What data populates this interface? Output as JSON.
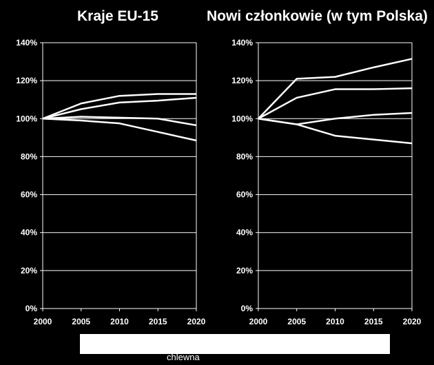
{
  "chart_data": [
    {
      "type": "line",
      "title": "Kraje EU-15",
      "x": [
        2000,
        2005,
        2010,
        2015,
        2020
      ],
      "xlim": [
        2000,
        2020
      ],
      "ylim": [
        0,
        140
      ],
      "y_ticks": [
        "0%",
        "20%",
        "40%",
        "60%",
        "80%",
        "100%",
        "120%",
        "140%"
      ],
      "x_ticks": [
        "2000",
        "2005",
        "2010",
        "2015",
        "2020"
      ],
      "grid": "horizontal",
      "line_color": "#ffffff",
      "series": [
        {
          "values": [
            100,
            108,
            112,
            113,
            113
          ]
        },
        {
          "values": [
            100,
            105,
            108.5,
            109.5,
            111
          ]
        },
        {
          "values": [
            100,
            101,
            100.5,
            100,
            96.5
          ]
        },
        {
          "values": [
            100,
            99,
            97.5,
            93,
            88.5
          ]
        }
      ]
    },
    {
      "type": "line",
      "title": "Nowi członkowie (w tym Polska)",
      "x": [
        2000,
        2005,
        2010,
        2015,
        2020
      ],
      "xlim": [
        2000,
        2020
      ],
      "ylim": [
        0,
        140
      ],
      "y_ticks": [
        "0%",
        "20%",
        "40%",
        "60%",
        "80%",
        "100%",
        "120%",
        "140%"
      ],
      "x_ticks": [
        "2000",
        "2005",
        "2010",
        "2015",
        "2020"
      ],
      "grid": "horizontal",
      "line_color": "#ffffff",
      "series": [
        {
          "values": [
            100,
            121,
            122,
            127,
            131.5
          ]
        },
        {
          "values": [
            100,
            111,
            115.5,
            115.5,
            116
          ]
        },
        {
          "values": [
            100,
            97,
            100,
            102,
            103
          ]
        },
        {
          "values": [
            100,
            97,
            91,
            89,
            87
          ]
        }
      ]
    }
  ],
  "legend_text": "chlewna"
}
